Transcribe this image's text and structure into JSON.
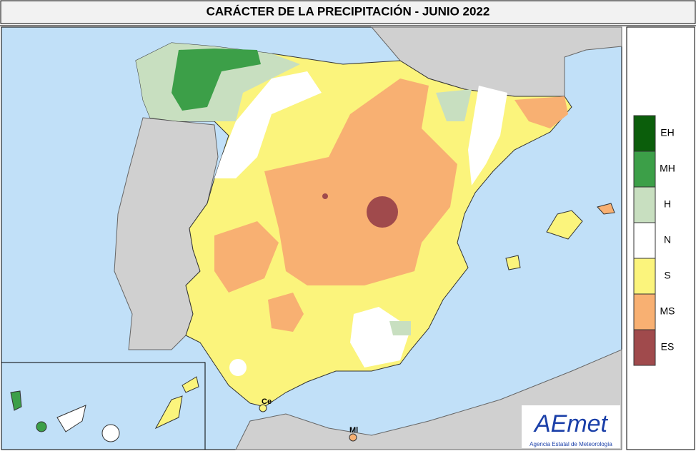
{
  "header": {
    "title": "CARÁCTER DE LA PRECIPITACIÓN - JUNIO  2022"
  },
  "legend": {
    "items": [
      {
        "label": "EH",
        "color": "#0b5e0b"
      },
      {
        "label": "MH",
        "color": "#3c9f48"
      },
      {
        "label": "H",
        "color": "#c8dfc0"
      },
      {
        "label": "N",
        "color": "#ffffff"
      },
      {
        "label": "S",
        "color": "#fbf47c"
      },
      {
        "label": "MS",
        "color": "#f8b072"
      },
      {
        "label": "ES",
        "color": "#a04a4c"
      }
    ]
  },
  "map": {
    "labels": [
      {
        "label": "Ce"
      },
      {
        "label": "Ml"
      }
    ]
  },
  "logo": {
    "text": "AEmet",
    "subtitle": "Agencia Estatal de Meteorología"
  }
}
